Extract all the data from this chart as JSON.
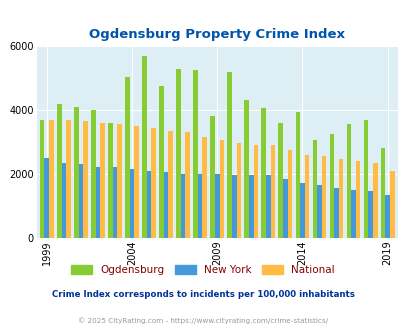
{
  "title": "Ogdensburg Property Crime Index",
  "years": [
    1999,
    2000,
    2001,
    2002,
    2003,
    2004,
    2005,
    2006,
    2007,
    2008,
    2009,
    2010,
    2011,
    2012,
    2013,
    2014,
    2015,
    2016,
    2017,
    2018,
    2019
  ],
  "ogdensburg": [
    3700,
    4200,
    4100,
    4000,
    3600,
    5050,
    5700,
    4750,
    5300,
    5250,
    3800,
    5200,
    4300,
    4050,
    3600,
    3950,
    3050,
    3250,
    3550,
    3700,
    2800
  ],
  "new_york": [
    2500,
    2350,
    2300,
    2200,
    2200,
    2150,
    2100,
    2050,
    2000,
    2000,
    2000,
    1950,
    1950,
    1950,
    1850,
    1700,
    1650,
    1550,
    1500,
    1450,
    1350
  ],
  "national": [
    3700,
    3700,
    3650,
    3600,
    3550,
    3500,
    3450,
    3350,
    3300,
    3150,
    3050,
    2950,
    2900,
    2900,
    2750,
    2600,
    2550,
    2450,
    2400,
    2350,
    2100
  ],
  "bar_color_ogdensburg": "#88cc33",
  "bar_color_newyork": "#4499dd",
  "bar_color_national": "#ffbb44",
  "background_color": "#ddeef5",
  "title_color": "#0055aa",
  "legend_label_color": "#880000",
  "subtitle_color": "#003399",
  "footer_color": "#999999",
  "subtitle": "Crime Index corresponds to incidents per 100,000 inhabitants",
  "footer": "© 2025 CityRating.com - https://www.cityrating.com/crime-statistics/",
  "ylim": [
    0,
    6000
  ],
  "yticks": [
    0,
    2000,
    4000,
    6000
  ],
  "xtick_years": [
    1999,
    2004,
    2009,
    2014,
    2019
  ]
}
